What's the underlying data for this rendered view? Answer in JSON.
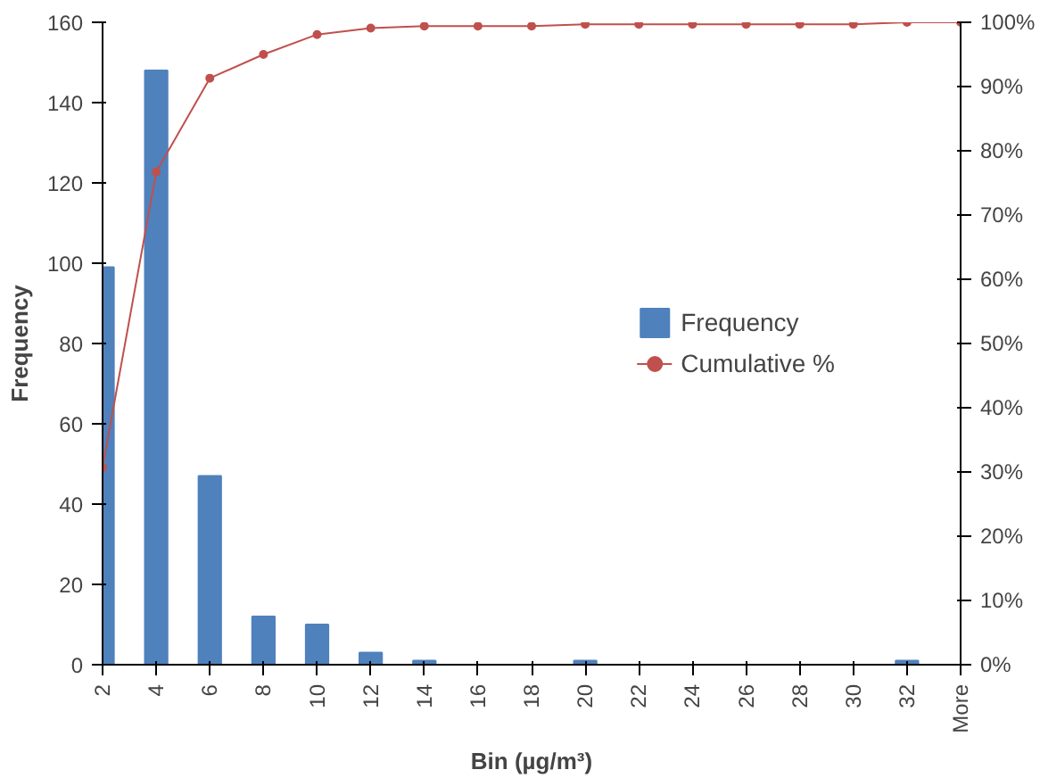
{
  "chart_data": {
    "type": "bar",
    "xlabel": "Bin (µg/m³)",
    "ylabel": "Frequency",
    "categories": [
      "2",
      "4",
      "6",
      "8",
      "10",
      "12",
      "14",
      "16",
      "18",
      "20",
      "22",
      "24",
      "26",
      "28",
      "30",
      "32",
      "More"
    ],
    "series": [
      {
        "name": "Frequency",
        "color": "#4f81bd",
        "values": [
          99,
          148,
          47,
          12,
          10,
          3,
          1,
          0,
          0,
          1,
          0,
          0,
          0,
          0,
          0,
          1,
          0
        ]
      },
      {
        "name": "Cumulative %",
        "type": "line",
        "axis": "y2",
        "color": "#c0504d",
        "values": [
          30.7,
          76.7,
          91.3,
          95.0,
          98.1,
          99.1,
          99.4,
          99.4,
          99.4,
          99.7,
          99.7,
          99.7,
          99.7,
          99.7,
          99.7,
          100,
          100
        ]
      }
    ],
    "ylim": [
      0,
      160
    ],
    "yticks": [
      0,
      20,
      40,
      60,
      80,
      100,
      120,
      140,
      160
    ],
    "y2lim": [
      0,
      100
    ],
    "y2ticks": [
      {
        "value": 0,
        "label": "0%"
      },
      {
        "value": 10,
        "label": "10%"
      },
      {
        "value": 20,
        "label": "20%"
      },
      {
        "value": 30,
        "label": "30%"
      },
      {
        "value": 40,
        "label": "40%"
      },
      {
        "value": 50,
        "label": "50%"
      },
      {
        "value": 60,
        "label": "60%"
      },
      {
        "value": 70,
        "label": "70%"
      },
      {
        "value": 80,
        "label": "80%"
      },
      {
        "value": 90,
        "label": "90%"
      },
      {
        "value": 100,
        "label": "100%"
      }
    ],
    "marker": "circle",
    "legend": "right",
    "grid": false
  }
}
